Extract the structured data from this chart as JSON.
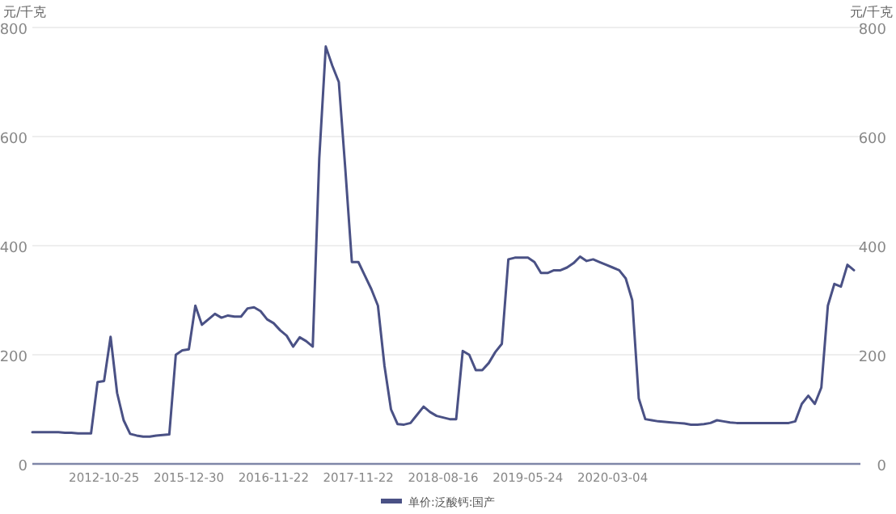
{
  "chart_data": {
    "type": "line",
    "ylabel": "元/千克",
    "y2label": "元/千克",
    "categories": [
      null,
      null,
      null,
      null,
      null,
      null,
      null,
      null,
      null,
      null,
      null,
      "2012-10-25",
      null,
      null,
      null,
      null,
      null,
      null,
      null,
      null,
      null,
      null,
      null,
      null,
      "2015-12-30",
      null,
      null,
      null,
      null,
      null,
      null,
      null,
      null,
      null,
      null,
      null,
      null,
      "2016-11-22",
      null,
      null,
      null,
      null,
      null,
      null,
      null,
      null,
      null,
      null,
      null,
      null,
      "2017-11-22",
      null,
      null,
      null,
      null,
      null,
      null,
      null,
      null,
      null,
      null,
      null,
      null,
      "2018-08-16",
      null,
      null,
      null,
      null,
      null,
      null,
      null,
      null,
      null,
      null,
      null,
      null,
      "2019-05-24",
      null,
      null,
      null,
      null,
      null,
      null,
      null,
      null,
      null,
      null,
      null,
      null,
      "2020-03-04",
      null,
      null,
      null,
      null,
      null,
      null,
      null,
      null,
      null,
      null,
      null,
      null,
      null,
      null,
      null,
      null,
      null,
      null,
      null,
      null,
      null,
      null,
      null,
      null,
      null,
      null,
      null,
      null,
      null,
      null,
      null,
      null,
      null,
      null,
      null,
      null,
      null
    ],
    "series": [
      {
        "name": "单价:泛酸钙:国产",
        "color": "#4a5185",
        "values": [
          58,
          58,
          58,
          58,
          58,
          57,
          57,
          56,
          56,
          56,
          150,
          152,
          233,
          130,
          80,
          55,
          52,
          50,
          50,
          52,
          53,
          54,
          200,
          208,
          210,
          290,
          255,
          265,
          275,
          268,
          272,
          270,
          270,
          285,
          287,
          280,
          265,
          258,
          245,
          235,
          215,
          232,
          225,
          215,
          560,
          765,
          730,
          700,
          540,
          370,
          370,
          345,
          320,
          290,
          180,
          100,
          73,
          72,
          75,
          90,
          105,
          95,
          88,
          85,
          82,
          82,
          207,
          200,
          172,
          172,
          185,
          205,
          220,
          375,
          378,
          378,
          378,
          370,
          350,
          350,
          355,
          355,
          360,
          368,
          380,
          372,
          375,
          370,
          365,
          360,
          355,
          340,
          300,
          120,
          82,
          80,
          78,
          77,
          76,
          75,
          74,
          72,
          72,
          73,
          75,
          80,
          78,
          76,
          75,
          75,
          75,
          75,
          75,
          75,
          75,
          75,
          75,
          78,
          110,
          125,
          110,
          140,
          290,
          330,
          325,
          365,
          355
        ]
      }
    ],
    "ylim": [
      0,
      800
    ],
    "yticks": [
      0,
      200,
      400,
      600,
      800
    ],
    "y2lim": [
      0,
      800
    ],
    "y2ticks": [
      0,
      200,
      400,
      600,
      800
    ],
    "grid": "y",
    "legend": "bottom",
    "marker": "none",
    "line_style": "solid"
  }
}
